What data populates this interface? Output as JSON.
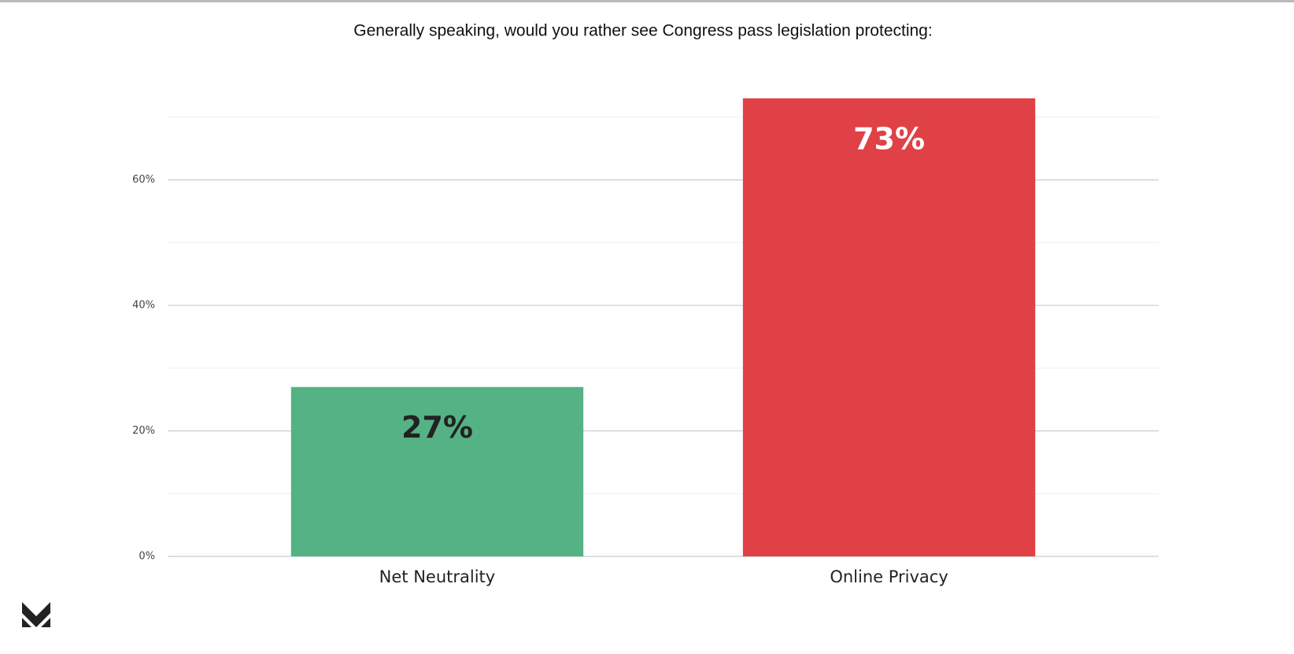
{
  "chart_data": {
    "type": "bar",
    "title": "Generally speaking, would you rather see Congress pass legislation protecting:",
    "categories": [
      "Net Neutrality",
      "Online Privacy"
    ],
    "values": [
      27,
      73
    ],
    "value_labels": [
      "27%",
      "73%"
    ],
    "colors": [
      "#55b284",
      "#e04146"
    ],
    "label_colors": [
      "#222222",
      "#ffffff"
    ],
    "ylim": [
      0,
      75
    ],
    "yticks": [
      {
        "value": 0,
        "label": "0%"
      },
      {
        "value": 20,
        "label": "20%"
      },
      {
        "value": 40,
        "label": "40%"
      },
      {
        "value": 60,
        "label": "60%"
      }
    ],
    "minor_yticks": [
      10,
      30,
      50,
      70
    ],
    "grid": true
  }
}
